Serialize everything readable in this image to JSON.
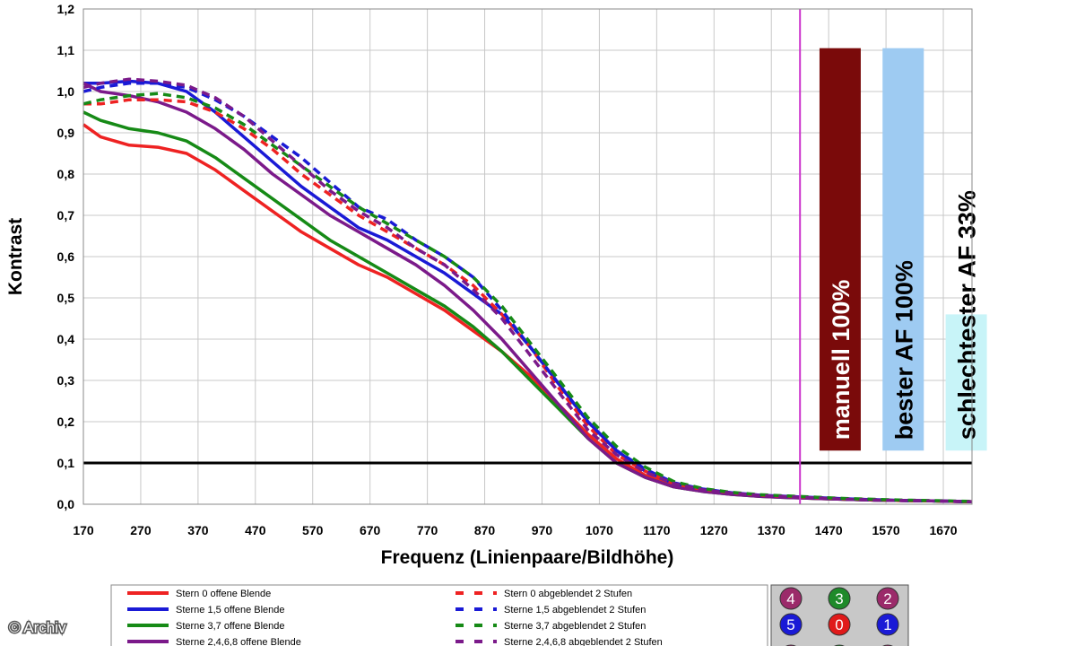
{
  "chart_data": {
    "type": "line",
    "title": "",
    "xlabel": "Frequenz (Linienpaare/Bildhöhe)",
    "ylabel": "Kontrast",
    "xlim": [
      170,
      1720
    ],
    "ylim": [
      0,
      1.2
    ],
    "x_ticks": [
      "170",
      "270",
      "370",
      "470",
      "570",
      "670",
      "770",
      "870",
      "970",
      "1070",
      "1170",
      "1270",
      "1370",
      "1470",
      "1570",
      "1670"
    ],
    "y_ticks": [
      "0,0",
      "0,1",
      "0,2",
      "0,3",
      "0,4",
      "0,5",
      "0,6",
      "0,7",
      "0,8",
      "0,9",
      "1,0",
      "1,1",
      "1,2"
    ],
    "grid": true,
    "reference_line": {
      "y": 0.1,
      "color": "#000000"
    },
    "marker_line": {
      "x": 1420,
      "color": "#cc33cc"
    },
    "series": [
      {
        "name": "Stern 0 offene Blende",
        "color": "#ee2222",
        "dash": false,
        "x": [
          170,
          200,
          250,
          300,
          350,
          400,
          450,
          500,
          550,
          600,
          650,
          700,
          750,
          800,
          850,
          900,
          950,
          1000,
          1050,
          1100,
          1150,
          1200,
          1250,
          1300,
          1350,
          1400,
          1450,
          1500,
          1550,
          1600,
          1650,
          1720
        ],
        "y": [
          0.92,
          0.89,
          0.87,
          0.865,
          0.85,
          0.81,
          0.76,
          0.71,
          0.66,
          0.62,
          0.58,
          0.55,
          0.51,
          0.47,
          0.42,
          0.37,
          0.31,
          0.24,
          0.17,
          0.11,
          0.07,
          0.045,
          0.032,
          0.025,
          0.02,
          0.017,
          0.014,
          0.012,
          0.01,
          0.009,
          0.008,
          0.006
        ]
      },
      {
        "name": "Sterne 1,5 offene Blende",
        "color": "#1a1ad6",
        "dash": false,
        "x": [
          170,
          200,
          250,
          300,
          350,
          400,
          450,
          500,
          550,
          600,
          650,
          700,
          750,
          800,
          850,
          900,
          950,
          1000,
          1050,
          1100,
          1150,
          1200,
          1250,
          1300,
          1350,
          1400,
          1450,
          1500,
          1550,
          1600,
          1650,
          1720
        ],
        "y": [
          1.02,
          1.02,
          1.025,
          1.02,
          1.0,
          0.95,
          0.89,
          0.83,
          0.77,
          0.72,
          0.67,
          0.64,
          0.6,
          0.56,
          0.51,
          0.46,
          0.38,
          0.29,
          0.2,
          0.13,
          0.08,
          0.05,
          0.035,
          0.027,
          0.021,
          0.018,
          0.015,
          0.012,
          0.01,
          0.009,
          0.008,
          0.006
        ]
      },
      {
        "name": "Sterne 3,7 offene Blende",
        "color": "#168a16",
        "dash": false,
        "x": [
          170,
          200,
          250,
          300,
          350,
          400,
          450,
          500,
          550,
          600,
          650,
          700,
          750,
          800,
          850,
          900,
          950,
          1000,
          1050,
          1100,
          1150,
          1200,
          1250,
          1300,
          1350,
          1400,
          1450,
          1500,
          1550,
          1600,
          1650,
          1720
        ],
        "y": [
          0.95,
          0.93,
          0.91,
          0.9,
          0.88,
          0.84,
          0.79,
          0.74,
          0.69,
          0.64,
          0.6,
          0.56,
          0.52,
          0.48,
          0.43,
          0.37,
          0.3,
          0.23,
          0.16,
          0.1,
          0.065,
          0.042,
          0.031,
          0.024,
          0.019,
          0.016,
          0.014,
          0.012,
          0.01,
          0.009,
          0.008,
          0.006
        ]
      },
      {
        "name": "Sterne 2,4,6,8 offene Blende",
        "color": "#7b1a8a",
        "dash": false,
        "x": [
          170,
          200,
          250,
          300,
          350,
          400,
          450,
          500,
          550,
          600,
          650,
          700,
          750,
          800,
          850,
          900,
          950,
          1000,
          1050,
          1100,
          1150,
          1200,
          1250,
          1300,
          1350,
          1400,
          1450,
          1500,
          1550,
          1600,
          1650,
          1720
        ],
        "y": [
          1.02,
          1.0,
          0.99,
          0.975,
          0.95,
          0.91,
          0.86,
          0.8,
          0.75,
          0.7,
          0.66,
          0.62,
          0.58,
          0.53,
          0.47,
          0.4,
          0.32,
          0.24,
          0.16,
          0.1,
          0.065,
          0.042,
          0.031,
          0.024,
          0.019,
          0.016,
          0.014,
          0.012,
          0.01,
          0.009,
          0.008,
          0.006
        ]
      },
      {
        "name": "Stern 0 abgeblendet 2 Stufen",
        "color": "#ee2222",
        "dash": true,
        "x": [
          170,
          200,
          250,
          300,
          350,
          400,
          450,
          500,
          550,
          600,
          650,
          700,
          750,
          800,
          850,
          900,
          950,
          1000,
          1050,
          1100,
          1150,
          1200,
          1250,
          1300,
          1350,
          1400,
          1450,
          1500,
          1550,
          1600,
          1650,
          1720
        ],
        "y": [
          0.97,
          0.97,
          0.98,
          0.98,
          0.975,
          0.95,
          0.91,
          0.86,
          0.8,
          0.75,
          0.7,
          0.66,
          0.62,
          0.58,
          0.53,
          0.46,
          0.38,
          0.28,
          0.19,
          0.12,
          0.08,
          0.05,
          0.036,
          0.028,
          0.022,
          0.019,
          0.016,
          0.013,
          0.011,
          0.009,
          0.008,
          0.006
        ]
      },
      {
        "name": "Sterne 1,5 abgeblendet 2 Stufen",
        "color": "#1a1ad6",
        "dash": true,
        "x": [
          170,
          200,
          250,
          300,
          350,
          400,
          450,
          500,
          550,
          600,
          650,
          700,
          750,
          800,
          850,
          900,
          950,
          1000,
          1050,
          1100,
          1150,
          1200,
          1250,
          1300,
          1350,
          1400,
          1450,
          1500,
          1550,
          1600,
          1650,
          1720
        ],
        "y": [
          1.0,
          1.01,
          1.02,
          1.02,
          1.01,
          0.98,
          0.94,
          0.89,
          0.84,
          0.78,
          0.72,
          0.69,
          0.64,
          0.6,
          0.55,
          0.47,
          0.38,
          0.29,
          0.2,
          0.13,
          0.085,
          0.052,
          0.037,
          0.028,
          0.022,
          0.019,
          0.016,
          0.013,
          0.011,
          0.009,
          0.008,
          0.006
        ]
      },
      {
        "name": "Sterne 3,7 abgeblendet 2 Stufen",
        "color": "#168a16",
        "dash": true,
        "x": [
          170,
          200,
          250,
          300,
          350,
          400,
          450,
          500,
          550,
          600,
          650,
          700,
          750,
          800,
          850,
          900,
          950,
          1000,
          1050,
          1100,
          1150,
          1200,
          1250,
          1300,
          1350,
          1400,
          1450,
          1500,
          1550,
          1600,
          1650,
          1720
        ],
        "y": [
          0.97,
          0.98,
          0.99,
          0.995,
          0.985,
          0.96,
          0.92,
          0.87,
          0.82,
          0.77,
          0.72,
          0.68,
          0.64,
          0.6,
          0.55,
          0.48,
          0.39,
          0.3,
          0.21,
          0.14,
          0.09,
          0.055,
          0.038,
          0.029,
          0.023,
          0.02,
          0.017,
          0.014,
          0.012,
          0.01,
          0.009,
          0.007
        ]
      },
      {
        "name": "Sterne 2,4,6,8 abgeblendet 2 Stufen",
        "color": "#7b1a8a",
        "dash": true,
        "x": [
          170,
          200,
          250,
          300,
          350,
          400,
          450,
          500,
          550,
          600,
          650,
          700,
          750,
          800,
          850,
          900,
          950,
          1000,
          1050,
          1100,
          1150,
          1200,
          1250,
          1300,
          1350,
          1400,
          1450,
          1500,
          1550,
          1600,
          1650,
          1720
        ],
        "y": [
          1.01,
          1.02,
          1.03,
          1.025,
          1.015,
          0.985,
          0.94,
          0.88,
          0.82,
          0.76,
          0.71,
          0.67,
          0.62,
          0.58,
          0.52,
          0.45,
          0.36,
          0.27,
          0.18,
          0.12,
          0.078,
          0.05,
          0.035,
          0.027,
          0.021,
          0.018,
          0.015,
          0.012,
          0.01,
          0.009,
          0.008,
          0.006
        ]
      }
    ],
    "legend": {
      "placement": "bottom",
      "columns": [
        [
          "Stern 0 offene Blende",
          "Sterne 1,5 offene Blende",
          "Sterne 3,7 offene Blende",
          "Sterne 2,4,6,8 offene Blende"
        ],
        [
          "Stern 0 abgeblendet 2 Stufen",
          "Sterne 1,5 abgeblendet 2 Stufen",
          "Sterne 3,7 abgeblendet 2 Stufen",
          "Sterne 2,4,6,8 abgeblendet 2 Stufen"
        ]
      ]
    },
    "annotation_bars": [
      {
        "label": "manuell 100%",
        "bg": "#7a0a0a",
        "fg": "#ffffff",
        "x_center": 1490,
        "y_top": 1.105
      },
      {
        "label": "bester AF 100%",
        "bg": "#9ecbf2",
        "fg": "#000000",
        "x_center": 1600,
        "y_top": 1.105
      },
      {
        "label": "schlechtester AF 33%",
        "bg": "#c8f4f8",
        "fg": "#000000",
        "x_center": 1710,
        "y_top": 0.46
      }
    ]
  },
  "credit": "© Archiv",
  "position_markers": [
    {
      "label": "4",
      "color": "#9b2a6a"
    },
    {
      "label": "3",
      "color": "#1f8a2a"
    },
    {
      "label": "2",
      "color": "#9b2a6a"
    },
    {
      "label": "5",
      "color": "#1a1ad6"
    },
    {
      "label": "0",
      "color": "#e01a1a"
    },
    {
      "label": "1",
      "color": "#1a1ad6"
    }
  ]
}
